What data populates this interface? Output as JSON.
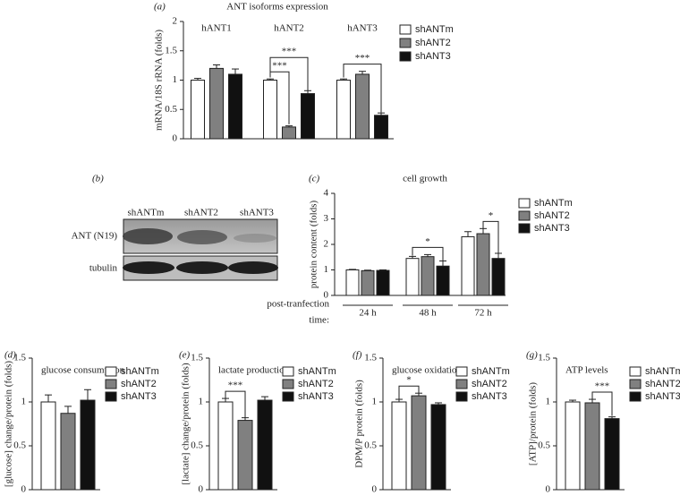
{
  "chart_data": [
    {
      "type": "bar",
      "label": "(a)",
      "title": "ANT isoforms expression",
      "ylabel": "mRNA/18S rRNA (folds)",
      "categories": [
        "hANT1",
        "hANT2",
        "hANT3"
      ],
      "series": [
        {
          "name": "shANTm",
          "color": "#ffffff",
          "values": [
            1.0,
            1.0,
            1.0
          ],
          "errors": [
            0.03,
            0.02,
            0.02
          ]
        },
        {
          "name": "shANT2",
          "color": "#808080",
          "values": [
            1.2,
            0.2,
            1.1
          ],
          "errors": [
            0.06,
            0.02,
            0.05
          ]
        },
        {
          "name": "shANT3",
          "color": "#111111",
          "values": [
            1.1,
            0.77,
            0.4
          ],
          "errors": [
            0.09,
            0.05,
            0.04
          ]
        }
      ],
      "ylim": [
        0,
        2
      ],
      "yticks": [
        0,
        0.5,
        1,
        1.5,
        2
      ],
      "annotations": [
        {
          "text": "***",
          "category": "hANT2",
          "between": [
            "shANTm",
            "shANT2"
          ]
        },
        {
          "text": "***",
          "category": "hANT2",
          "between": [
            "shANTm",
            "shANT3"
          ]
        },
        {
          "text": "***",
          "category": "hANT3",
          "between": [
            "shANTm",
            "shANT3"
          ]
        }
      ]
    },
    {
      "type": "bar",
      "label": "(c)",
      "title": "cell growth",
      "ylabel": "protein content (folds)",
      "xlabel": [
        "post-tranfection",
        "time:"
      ],
      "categories": [
        "24 h",
        "48 h",
        "72 h"
      ],
      "series": [
        {
          "name": "shANTm",
          "color": "#ffffff",
          "values": [
            1.0,
            1.45,
            2.3
          ],
          "errors": [
            0.02,
            0.08,
            0.2
          ]
        },
        {
          "name": "shANT2",
          "color": "#808080",
          "values": [
            0.97,
            1.52,
            2.42
          ],
          "errors": [
            0.02,
            0.08,
            0.2
          ]
        },
        {
          "name": "shANT3",
          "color": "#111111",
          "values": [
            0.98,
            1.15,
            1.45
          ],
          "errors": [
            0.02,
            0.2,
            0.2
          ]
        }
      ],
      "ylim": [
        0,
        4
      ],
      "yticks": [
        0,
        1,
        2,
        3,
        4
      ],
      "annotations": [
        {
          "text": "*",
          "category": "48 h",
          "between": [
            "shANTm",
            "shANT3"
          ]
        },
        {
          "text": "*",
          "category": "72 h",
          "between": [
            "shANT2",
            "shANT3"
          ]
        }
      ]
    },
    {
      "type": "bar",
      "label": "(d)",
      "title": "glucose consumption",
      "ylabel": "[glucose] change/protein (folds)",
      "categories": [
        null
      ],
      "series": [
        {
          "name": "shANTm",
          "color": "#ffffff",
          "values": [
            1.0
          ],
          "errors": [
            0.08
          ]
        },
        {
          "name": "shANT2",
          "color": "#808080",
          "values": [
            0.87
          ],
          "errors": [
            0.08
          ]
        },
        {
          "name": "shANT3",
          "color": "#111111",
          "values": [
            1.02
          ],
          "errors": [
            0.12
          ]
        }
      ],
      "ylim": [
        0,
        1.5
      ],
      "yticks": [
        0,
        0.5,
        1,
        1.5
      ],
      "annotations": []
    },
    {
      "type": "bar",
      "label": "(e)",
      "title": "lactate production",
      "ylabel": "[lactate] change/protein (folds)",
      "categories": [
        null
      ],
      "series": [
        {
          "name": "shANTm",
          "color": "#ffffff",
          "values": [
            1.0
          ],
          "errors": [
            0.04
          ]
        },
        {
          "name": "shANT2",
          "color": "#808080",
          "values": [
            0.79
          ],
          "errors": [
            0.03
          ]
        },
        {
          "name": "shANT3",
          "color": "#111111",
          "values": [
            1.02
          ],
          "errors": [
            0.04
          ]
        }
      ],
      "ylim": [
        0,
        1.5
      ],
      "yticks": [
        0,
        0.5,
        1,
        1.5
      ],
      "annotations": [
        {
          "text": "***",
          "category": null,
          "between": [
            "shANTm",
            "shANT2"
          ]
        }
      ]
    },
    {
      "type": "bar",
      "label": "(f)",
      "title": "glucose  oxidation",
      "ylabel": "DPM/P protein (folds)",
      "categories": [
        null
      ],
      "series": [
        {
          "name": "shANTm",
          "color": "#ffffff",
          "values": [
            1.0
          ],
          "errors": [
            0.03
          ]
        },
        {
          "name": "shANT2",
          "color": "#808080",
          "values": [
            1.07
          ],
          "errors": [
            0.03
          ]
        },
        {
          "name": "shANT3",
          "color": "#111111",
          "values": [
            0.97
          ],
          "errors": [
            0.02
          ]
        }
      ],
      "ylim": [
        0,
        1.5
      ],
      "yticks": [
        0,
        0.5,
        1,
        1.5
      ],
      "annotations": [
        {
          "text": "*",
          "category": null,
          "between": [
            "shANTm",
            "shANT2"
          ]
        }
      ]
    },
    {
      "type": "bar",
      "label": "(g)",
      "title": "ATP levels",
      "ylabel": "[ATP]/protein (folds)",
      "categories": [
        null
      ],
      "series": [
        {
          "name": "shANTm",
          "color": "#ffffff",
          "values": [
            1.0
          ],
          "errors": [
            0.02
          ]
        },
        {
          "name": "shANT2",
          "color": "#808080",
          "values": [
            0.99
          ],
          "errors": [
            0.04
          ]
        },
        {
          "name": "shANT3",
          "color": "#111111",
          "values": [
            0.81
          ],
          "errors": [
            0.02
          ]
        }
      ],
      "ylim": [
        0,
        1.5
      ],
      "yticks": [
        0,
        0.5,
        1,
        1.5
      ],
      "annotations": [
        {
          "text": "***",
          "category": null,
          "between": [
            "shANT2",
            "shANT3"
          ]
        }
      ]
    }
  ],
  "blot": {
    "label": "(b)",
    "lanes": [
      "shANTm",
      "shANT2",
      "shANT3"
    ],
    "rows": [
      "ANT (N19)",
      "tubulin"
    ]
  }
}
